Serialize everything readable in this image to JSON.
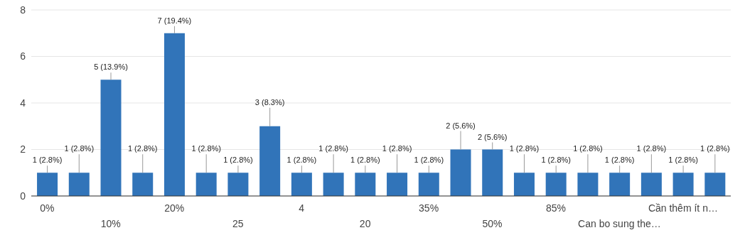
{
  "chart_data": {
    "type": "bar",
    "categories": [
      "0%",
      null,
      "10%",
      null,
      "20%",
      null,
      "25",
      null,
      "4",
      null,
      "20",
      null,
      "35%",
      null,
      "50%",
      null,
      "85%",
      null,
      "Can bo sung the…",
      null,
      "Cần thêm ít n…",
      null
    ],
    "values": [
      1,
      1,
      5,
      1,
      7,
      1,
      1,
      3,
      1,
      1,
      1,
      1,
      1,
      2,
      2,
      1,
      1,
      1,
      1,
      1,
      1,
      1
    ],
    "value_labels": [
      "1 (2.8%)",
      "1 (2.8%)",
      "5 (13.9%)",
      "1 (2.8%)",
      "7 (19.4%)",
      "1 (2.8%)",
      "1 (2.8%)",
      "3 (8.3%)",
      "1 (2.8%)",
      "1 (2.8%)",
      "1 (2.8%)",
      "1 (2.8%)",
      "1 (2.8%)",
      "2 (5.6%)",
      "2 (5.6%)",
      "1 (2.8%)",
      "1 (2.8%)",
      "1 (2.8%)",
      "1 (2.8%)",
      "1 (2.8%)",
      "1 (2.8%)",
      "1 (2.8%)"
    ],
    "color": "#3174b9",
    "ylim": [
      0,
      8
    ],
    "yticks": [
      0,
      2,
      4,
      6,
      8
    ],
    "grid": "y"
  }
}
